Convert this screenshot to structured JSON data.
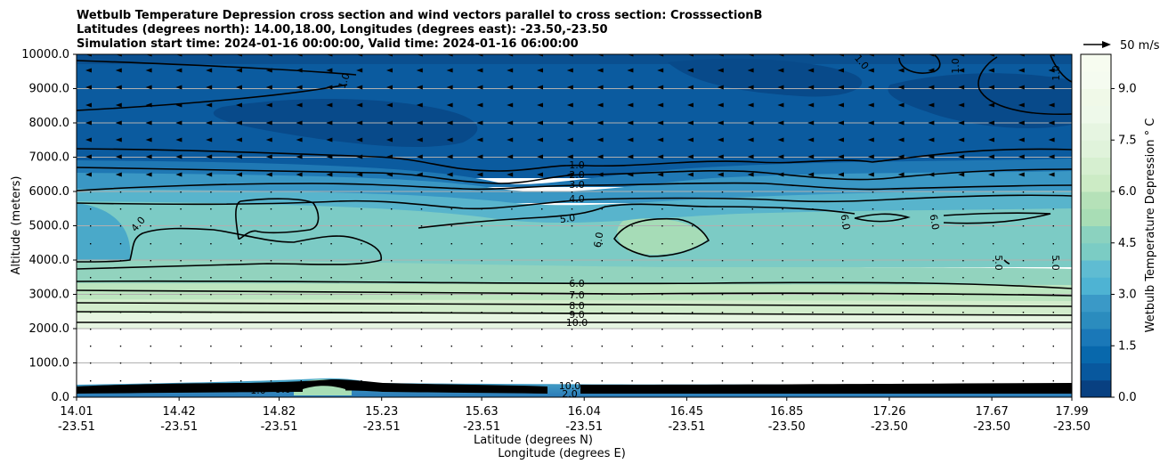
{
  "chart_data": {
    "type": "contour",
    "title_lines": [
      "Wetbulb Temperature Depression cross section and wind vectors parallel to cross section: CrosssectionB",
      "Latitudes (degrees north): 14.00,18.00, Longitudes (degrees east): -23.50,-23.50",
      "Simulation start time: 2024-01-16 00:00:00, Valid time: 2024-01-16 06:00:00"
    ],
    "xlabel_lat": "Latitude (degrees N)",
    "xlabel_lon": "Longitude (degrees E)",
    "ylabel": "Altitude (meters)",
    "ylim": [
      0,
      10000
    ],
    "grid": true,
    "x_ticks": [
      {
        "lat": "14.01",
        "lon": "-23.51"
      },
      {
        "lat": "14.42",
        "lon": "-23.51"
      },
      {
        "lat": "14.82",
        "lon": "-23.51"
      },
      {
        "lat": "15.23",
        "lon": "-23.51"
      },
      {
        "lat": "15.63",
        "lon": "-23.51"
      },
      {
        "lat": "16.04",
        "lon": "-23.51"
      },
      {
        "lat": "16.45",
        "lon": "-23.51"
      },
      {
        "lat": "16.85",
        "lon": "-23.50"
      },
      {
        "lat": "17.26",
        "lon": "-23.50"
      },
      {
        "lat": "17.67",
        "lon": "-23.50"
      },
      {
        "lat": "17.99",
        "lon": "-23.50"
      }
    ],
    "y_ticks": [
      "0.0",
      "1000.0",
      "2000.0",
      "3000.0",
      "4000.0",
      "5000.0",
      "6000.0",
      "7000.0",
      "8000.0",
      "9000.0",
      "10000.0"
    ],
    "y_tick_values": [
      0,
      1000,
      2000,
      3000,
      4000,
      5000,
      6000,
      7000,
      8000,
      9000,
      10000
    ],
    "colorbar": {
      "label": "Wetbulb Temperature Depression ° C",
      "range": [
        0,
        10
      ],
      "ticks": [
        "0.0",
        "1.5",
        "3.0",
        "4.5",
        "6.0",
        "7.5",
        "9.0"
      ],
      "tick_values": [
        0,
        1.5,
        3.0,
        4.5,
        6.0,
        7.5,
        9.0
      ],
      "colormap": "GnBu_r"
    },
    "quiver_key": "50 m/s",
    "contour_levels": [
      {
        "label": "1.0",
        "altitude": 6570
      },
      {
        "label": "2.0",
        "altitude": 6290
      },
      {
        "label": "3.0",
        "altitude": 6020
      },
      {
        "label": "4.0",
        "altitude": 5600
      },
      {
        "label": "5.0",
        "altitude": 5200
      },
      {
        "label": "6.0",
        "altitude": 3180
      },
      {
        "label": "7.0",
        "altitude": 2990
      },
      {
        "label": "8.0",
        "altitude": 2710
      },
      {
        "label": "9.0",
        "altitude": 2400
      },
      {
        "label": "10.0",
        "altitude": 2180
      }
    ],
    "extra_labels": [
      "1.0",
      "1.0",
      "1.0",
      "1.0",
      "4.0",
      "6.0",
      "6.0",
      "6.0",
      "5.0",
      "5.0",
      "1.0",
      "9.0",
      "10.0",
      "2.0"
    ]
  }
}
